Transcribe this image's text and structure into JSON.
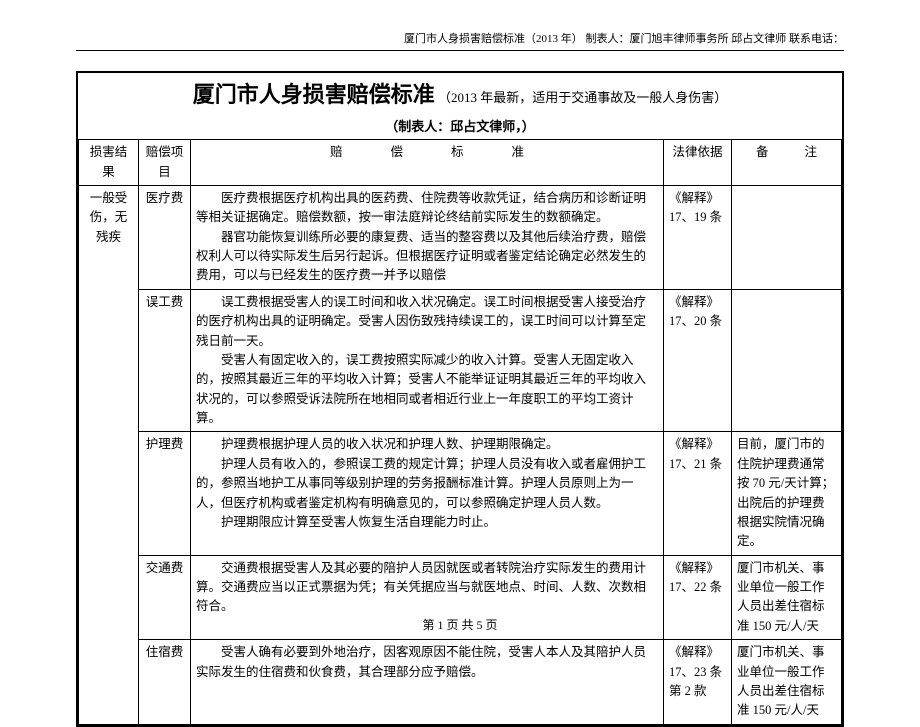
{
  "header": {
    "text": "厦门市人身损害赔偿标准（2013 年）  制表人：厦门旭丰律师事务所  邱占文律师  联系电话："
  },
  "title": {
    "main": "厦门市人身损害赔偿标准",
    "sub": "（2013 年最新，适用于交通事故及一般人身伤害）"
  },
  "subtitle": "（制表人：邱占文律师，）",
  "columns": {
    "result": "损害结果",
    "item": "赔偿项目",
    "detail_a": "赔",
    "detail_b": "偿",
    "detail_c": "标",
    "detail_d": "准",
    "law": "法律依据",
    "note_a": "备",
    "note_b": "注"
  },
  "rows": [
    {
      "item": "医疗费",
      "detail": "　　医疗费根据医疗机构出具的医药费、住院费等收款凭证，结合病历和诊断证明等相关证据确定。赔偿数额，按一审法庭辩论终结前实际发生的数额确定。\n　　器官功能恢复训练所必要的康复费、适当的整容费以及其他后续治疗费，赔偿权利人可以待实际发生后另行起诉。但根据医疗证明或者鉴定结论确定必然发生的费用，可以与已经发生的医疗费一并予以赔偿",
      "law": "《解释》\n17、19 条",
      "note": ""
    },
    {
      "item": "误工费",
      "detail": "　　误工费根据受害人的误工时间和收入状况确定。误工时间根据受害人接受治疗的医疗机构出具的证明确定。受害人因伤致残持续误工的，误工时间可以计算至定残日前一天。\n　　受害人有固定收入的，误工费按照实际减少的收入计算。受害人无固定收入的，按照其最近三年的平均收入计算；受害人不能举证证明其最近三年的平均收入状况的，可以参照受诉法院所在地相同或者相近行业上一年度职工的平均工资计算。",
      "law": "《解释》\n17、20 条",
      "note": ""
    },
    {
      "item": "护理费",
      "detail": "　　护理费根据护理人员的收入状况和护理人数、护理期限确定。\n　　护理人员有收入的，参照误工费的规定计算；护理人员没有收入或者雇佣护工的，参照当地护工从事同等级别护理的劳务报酬标准计算。护理人员原则上为一人，但医疗机构或者鉴定机构有明确意见的，可以参照确定护理人员人数。\n　　护理期限应计算至受害人恢复生活自理能力时止。",
      "law": "《解释》\n17、21 条",
      "note": "目前，厦门市的住院护理费通常按 70 元/天计算；出院后的护理费根据实院情况确定。"
    },
    {
      "item": "交通费",
      "detail": "　　交通费根据受害人及其必要的陪护人员因就医或者转院治疗实际发生的费用计算。交通费应当以正式票据为凭；有关凭据应当与就医地点、时间、人数、次数相符合。",
      "law": "《解释》\n17、22 条",
      "note": "厦门市机关、事业单位一般工作人员出差住宿标准 150 元/人/天"
    },
    {
      "item": "住宿费",
      "detail": "　　受害人确有必要到外地治疗，因客观原因不能住院，受害人本人及其陪护人员实际发生的住宿费和伙食费，其合理部分应予赔偿。",
      "law": "《解释》\n17、23 条\n第 2 款",
      "note": "厦门市机关、事业单位一般工作人员出差住宿标准 150 元/人/天"
    }
  ],
  "resultLabel": "一般受伤，无残疾",
  "footer": "第 1 页 共 5 页"
}
